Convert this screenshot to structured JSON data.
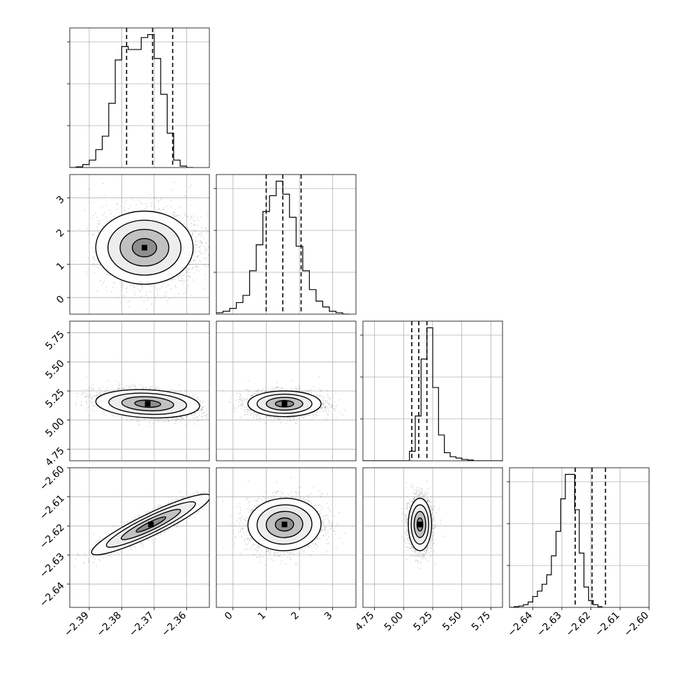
{
  "chart_data": {
    "type": "corner",
    "n_params": 4,
    "axes_labels": [
      "",
      "",
      "",
      ""
    ],
    "ranges": [
      [
        -2.396,
        -2.353
      ],
      [
        -0.5,
        3.7
      ],
      [
        4.65,
        5.85
      ],
      [
        -2.648,
        -2.6
      ]
    ],
    "ticks": [
      {
        "values": [
          -2.39,
          -2.38,
          -2.37,
          -2.36
        ],
        "labels": [
          "−2.39",
          "−2.38",
          "−2.37",
          "−2.36"
        ]
      },
      {
        "values": [
          0,
          1,
          2,
          3
        ],
        "labels": [
          "0",
          "1",
          "2",
          "3"
        ]
      },
      {
        "values": [
          4.75,
          5.0,
          5.25,
          5.5,
          5.75
        ],
        "labels": [
          "4.75",
          "5.00",
          "5.25",
          "5.50",
          "5.75"
        ]
      },
      {
        "values": [
          -2.64,
          -2.63,
          -2.62,
          -2.61,
          -2.6
        ],
        "labels": [
          "−2.64",
          "−2.63",
          "−2.62",
          "−2.61",
          "−2.60"
        ]
      }
    ],
    "quantiles": [
      [
        -2.3785,
        -2.3705,
        -2.3643
      ],
      [
        1.0,
        1.5,
        2.05
      ],
      [
        5.07,
        5.13,
        5.2
      ],
      [
        -2.6254,
        -2.6196,
        -2.615
      ]
    ],
    "histograms": [
      {
        "edges_start": -2.396,
        "bin_width": 0.002,
        "counts": [
          0,
          0.5,
          2,
          5,
          12,
          21,
          43,
          72,
          81,
          79,
          79,
          87,
          89,
          73,
          49,
          23,
          5,
          1,
          0
        ]
      },
      {
        "edges_start": -0.5,
        "bin_width": 0.2,
        "counts": [
          1,
          2,
          4,
          8,
          13,
          30,
          48,
          71,
          82,
          92,
          83,
          67,
          47,
          30,
          17,
          9,
          5,
          2,
          1,
          0
        ]
      },
      {
        "edges_start": 4.65,
        "bin_width": 0.05,
        "counts": [
          0,
          0,
          0,
          0,
          0,
          0,
          0,
          0,
          7,
          33,
          75,
          98,
          54,
          19,
          6,
          3,
          2,
          1,
          0.5,
          0,
          0,
          0,
          0,
          0
        ]
      },
      {
        "edges_start": -2.648,
        "bin_width": 0.0016,
        "counts": [
          0,
          0.5,
          1,
          2,
          4,
          8,
          12,
          17,
          24,
          38,
          56,
          80,
          98,
          98,
          72,
          40,
          15,
          5,
          2,
          0.5
        ]
      }
    ],
    "joint": [
      {
        "x_param": 0,
        "y_param": 1,
        "mean": [
          -2.373,
          1.5
        ],
        "sd": [
          0.0075,
          0.55
        ],
        "rho": 0.0,
        "bimodal_x": [
          -2.377,
          -2.366
        ]
      },
      {
        "x_param": 0,
        "y_param": 2,
        "mean": [
          -2.372,
          5.14
        ],
        "sd": [
          0.008,
          0.06
        ],
        "rho": -0.35
      },
      {
        "x_param": 1,
        "y_param": 2,
        "mean": [
          1.55,
          5.14
        ],
        "sd": [
          0.55,
          0.055
        ],
        "rho": 0.0
      },
      {
        "x_param": 0,
        "y_param": 3,
        "mean": [
          -2.371,
          -2.6195
        ],
        "sd": [
          0.0075,
          0.0045
        ],
        "rho": 0.9
      },
      {
        "x_param": 1,
        "y_param": 3,
        "mean": [
          1.55,
          -2.6195
        ],
        "sd": [
          0.55,
          0.0045
        ],
        "rho": 0.1
      },
      {
        "x_param": 2,
        "y_param": 3,
        "mean": [
          5.14,
          -2.6195
        ],
        "sd": [
          0.05,
          0.0045
        ],
        "rho": 0.0
      }
    ],
    "grid": true,
    "contour_levels_sigma": [
      0.5,
      1.0,
      1.5,
      2.0
    ],
    "colors": {
      "line": "#000000",
      "grid": "#b0b0b0",
      "points": "#7f7f7f",
      "frame": "#000000"
    }
  }
}
